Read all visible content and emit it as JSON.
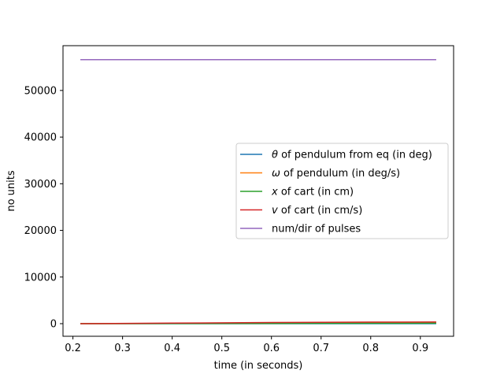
{
  "chart_data": {
    "type": "line",
    "xlabel": "time (in seconds)",
    "ylabel": "no units",
    "xlim": [
      0.18,
      0.967
    ],
    "ylim": [
      -2700,
      59600
    ],
    "xticks": [
      0.2,
      0.3,
      0.4,
      0.5,
      0.6,
      0.7,
      0.8,
      0.9
    ],
    "xtick_labels": [
      "0.2",
      "0.3",
      "0.4",
      "0.5",
      "0.6",
      "0.7",
      "0.8",
      "0.9"
    ],
    "yticks": [
      0,
      10000,
      20000,
      30000,
      40000,
      50000
    ],
    "ytick_labels": [
      "0",
      "10000",
      "20000",
      "30000",
      "40000",
      "50000"
    ],
    "grid": false,
    "legend_position": "center-right",
    "series": [
      {
        "name": "θ of pendulum from eq (in deg)",
        "legend_label": {
          "symbol": "θ",
          "rest": " of pendulum from eq (in deg)"
        },
        "color": "#1f77b4",
        "x": [
          0.215,
          0.4,
          0.6,
          0.8,
          0.932
        ],
        "y": [
          0,
          0,
          0,
          0,
          0
        ]
      },
      {
        "name": "ω of pendulum (in deg/s)",
        "legend_label": {
          "symbol": "ω",
          "rest": " of pendulum (in deg/s)"
        },
        "color": "#ff7f0e",
        "x": [
          0.215,
          0.4,
          0.6,
          0.8,
          0.932
        ],
        "y": [
          0,
          50,
          150,
          250,
          300
        ]
      },
      {
        "name": "x of cart (in cm)",
        "legend_label": {
          "symbol": "x",
          "rest": " of cart (in cm)"
        },
        "color": "#2ca02c",
        "x": [
          0.215,
          0.4,
          0.6,
          0.8,
          0.932
        ],
        "y": [
          0,
          20,
          50,
          80,
          100
        ]
      },
      {
        "name": "v of cart  (in cm/s)",
        "legend_label": {
          "symbol": "v",
          "rest": " of cart  (in cm/s)"
        },
        "color": "#d62728",
        "x": [
          0.215,
          0.4,
          0.6,
          0.8,
          0.932
        ],
        "y": [
          0,
          120,
          250,
          330,
          350
        ]
      },
      {
        "name": "num/dir of pulses",
        "legend_label": {
          "symbol": "",
          "rest": "num/dir of pulses"
        },
        "color": "#9467bd",
        "x": [
          0.215,
          0.4,
          0.6,
          0.8,
          0.932
        ],
        "y": [
          56600,
          56600,
          56600,
          56600,
          56600
        ]
      }
    ]
  }
}
